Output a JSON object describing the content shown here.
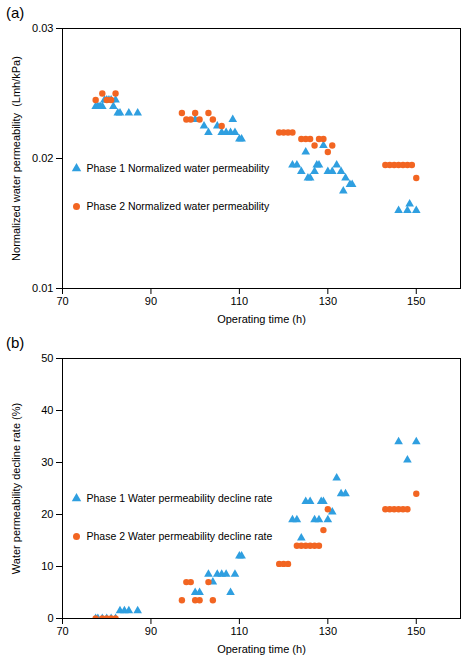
{
  "chart_data": [
    {
      "type": "scatter",
      "title": "(a)",
      "x_label": "Operating time (h)",
      "y_label": "Normalized water permeability  (Lmh/kPa)",
      "xlim": [
        70,
        160
      ],
      "xticks": [
        70,
        90,
        110,
        130,
        150
      ],
      "ylim": [
        0.01,
        0.03
      ],
      "yticks": [
        0.01,
        0.02,
        0.03
      ],
      "grid": false,
      "legend": "left",
      "series": [
        {
          "name": "Phase 1 Normalized water permeability",
          "color": "#2f9fe0",
          "marker": "triangle",
          "x": [
            77.5,
            78,
            78.5,
            79,
            79.5,
            80,
            80.5,
            81,
            81.5,
            82,
            82.5,
            83,
            85,
            87,
            100,
            102,
            103,
            105,
            106,
            107,
            108,
            108.5,
            109,
            110,
            110.5,
            122,
            123,
            124,
            125,
            125.5,
            126,
            127,
            127.5,
            128,
            129,
            130,
            131,
            132,
            133,
            133.5,
            134,
            135,
            135.5,
            146,
            148,
            148.5,
            150
          ],
          "values": [
            0.024,
            0.024,
            0.024,
            0.024,
            0.0245,
            0.0245,
            0.0245,
            0.0245,
            0.024,
            0.0245,
            0.0235,
            0.0235,
            0.0235,
            0.0235,
            0.023,
            0.0225,
            0.022,
            0.0225,
            0.022,
            0.022,
            0.022,
            0.023,
            0.022,
            0.0215,
            0.0215,
            0.0195,
            0.0195,
            0.019,
            0.0205,
            0.0185,
            0.0185,
            0.019,
            0.0195,
            0.0195,
            0.021,
            0.019,
            0.019,
            0.0195,
            0.019,
            0.0175,
            0.0185,
            0.018,
            0.018,
            0.016,
            0.016,
            0.0165,
            0.016
          ]
        },
        {
          "name": "Phase 2 Normalized water permeability",
          "color": "#f26522",
          "marker": "circle",
          "x": [
            77.5,
            79,
            80,
            81,
            82,
            97,
            98,
            99,
            100,
            101,
            103,
            104,
            106,
            119,
            120,
            121,
            122,
            124,
            125,
            126,
            127,
            128,
            129,
            130,
            131,
            143,
            144,
            145,
            146,
            147,
            148,
            149,
            150
          ],
          "values": [
            0.0245,
            0.025,
            0.0245,
            0.0245,
            0.025,
            0.0235,
            0.023,
            0.023,
            0.0235,
            0.023,
            0.0235,
            0.023,
            0.0225,
            0.022,
            0.022,
            0.022,
            0.022,
            0.0215,
            0.0215,
            0.0215,
            0.021,
            0.0215,
            0.0215,
            0.0205,
            0.021,
            0.0195,
            0.0195,
            0.0195,
            0.0195,
            0.0195,
            0.0195,
            0.0195,
            0.0185
          ]
        }
      ]
    },
    {
      "type": "scatter",
      "title": "(b)",
      "x_label": "Operating time (h)",
      "y_label": "Water permeability decline rate (%)",
      "xlim": [
        70,
        160
      ],
      "xticks": [
        70,
        90,
        110,
        130,
        150
      ],
      "ylim": [
        0,
        50
      ],
      "yticks": [
        0,
        10,
        20,
        30,
        40,
        50
      ],
      "grid": false,
      "legend": "left",
      "series": [
        {
          "name": "Phase 1 Water permeability decline rate",
          "color": "#2f9fe0",
          "marker": "triangle",
          "x": [
            77.5,
            78,
            79,
            80,
            81,
            82,
            83,
            84,
            85,
            87,
            100,
            101,
            103,
            104,
            105,
            106,
            107,
            108,
            109,
            110,
            110.5,
            122,
            123,
            124,
            125,
            126,
            127,
            128,
            128.5,
            129,
            130,
            131,
            132,
            133,
            134,
            146,
            148,
            150
          ],
          "values": [
            0,
            0,
            0,
            0,
            0,
            0,
            1.5,
            1.5,
            1.5,
            1.5,
            5,
            5,
            8.5,
            7,
            8.5,
            8.5,
            8.5,
            5,
            8.5,
            12,
            12,
            19,
            19,
            15.5,
            22.5,
            22.5,
            19,
            19,
            22.5,
            22.5,
            19,
            20.5,
            27,
            24,
            24,
            34,
            30.5,
            34
          ]
        },
        {
          "name": "Phase 2 Water permeability decline rate",
          "color": "#f26522",
          "marker": "circle",
          "x": [
            77.5,
            79,
            80,
            81,
            82,
            97,
            98,
            99,
            100,
            101,
            103,
            104,
            119,
            120,
            121,
            123,
            124,
            125,
            126,
            127,
            128,
            129,
            130,
            143,
            144,
            145,
            146,
            147,
            148,
            150
          ],
          "values": [
            0,
            0,
            0,
            0,
            0,
            3.5,
            7,
            7,
            3.5,
            3.5,
            7,
            3.5,
            10.5,
            10.5,
            10.5,
            14,
            14,
            14,
            14,
            14,
            14,
            17,
            21,
            21,
            21,
            21,
            21,
            21,
            21,
            24
          ]
        }
      ]
    }
  ]
}
